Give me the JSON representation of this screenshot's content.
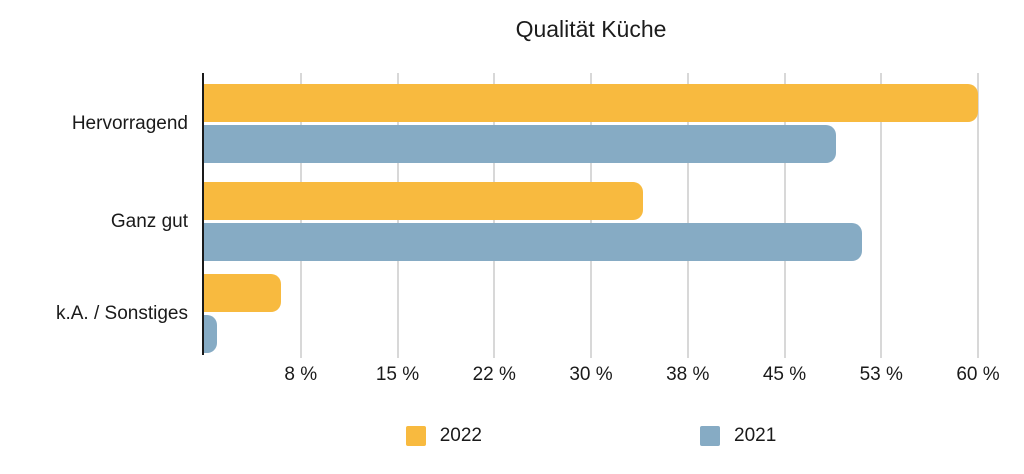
{
  "title": "Qualität Küche",
  "chart_data": {
    "type": "bar",
    "orientation": "horizontal",
    "title": "Qualität Küche",
    "categories": [
      "Hervorragend",
      "Ganz gut",
      "k.A. / Sonstiges"
    ],
    "series": [
      {
        "name": "2022",
        "color": "#F8BA3F",
        "values": [
          60,
          34,
          6
        ]
      },
      {
        "name": "2021",
        "color": "#86ABC4",
        "values": [
          49,
          51,
          1
        ]
      }
    ],
    "value_unit": "%",
    "xlim": [
      0,
      60
    ],
    "x_ticks": [
      {
        "value": 7.5,
        "label": "8 %"
      },
      {
        "value": 15,
        "label": "15 %"
      },
      {
        "value": 22.5,
        "label": "22 %"
      },
      {
        "value": 30,
        "label": "30 %"
      },
      {
        "value": 37.5,
        "label": "38 %"
      },
      {
        "value": 45,
        "label": "45 %"
      },
      {
        "value": 52.5,
        "label": "53 %"
      },
      {
        "value": 60,
        "label": "60 %"
      }
    ],
    "grid": true,
    "legend_position": "bottom"
  },
  "colors": {
    "background": "#ffffff",
    "axis_line": "#1a1a1a",
    "gridline": "#d8d8d8",
    "text": "#1a1a1a",
    "series_2022": "#F8BA3F",
    "series_2021": "#86ABC4"
  }
}
